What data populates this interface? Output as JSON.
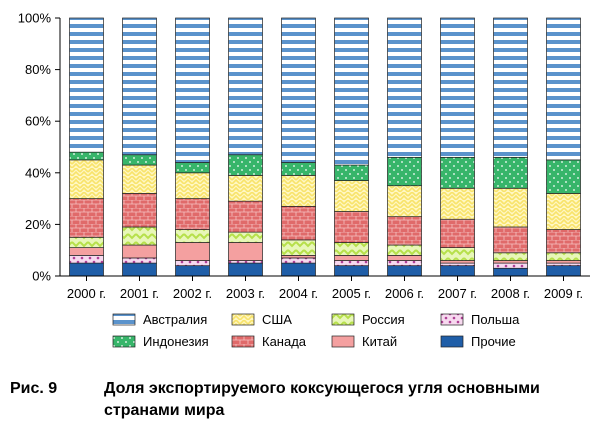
{
  "chart_data": {
    "type": "bar",
    "stacked": true,
    "categories": [
      "2000 г.",
      "2001 г.",
      "2002 г.",
      "2003 г.",
      "2004 г.",
      "2005 г.",
      "2006 г.",
      "2007 г.",
      "2008 г.",
      "2009 г."
    ],
    "ylim": [
      0,
      100
    ],
    "yticks": [
      "0%",
      "20%",
      "40%",
      "60%",
      "80%",
      "100%"
    ],
    "series": [
      {
        "name": "Прочие",
        "color": "#1f5ea8",
        "values": [
          5,
          5,
          4,
          5,
          5,
          4,
          4,
          4,
          3,
          4
        ]
      },
      {
        "name": "Польша",
        "color": "#d98cc8",
        "values": [
          3,
          2,
          2,
          1,
          2,
          2,
          2,
          1,
          2,
          1
        ]
      },
      {
        "name": "Китай",
        "color": "#f4a0a0",
        "values": [
          3,
          5,
          7,
          7,
          1,
          2,
          2,
          1,
          1,
          1
        ]
      },
      {
        "name": "Россия",
        "color": "#b6e04a",
        "values": [
          4,
          7,
          5,
          4,
          6,
          5,
          4,
          5,
          3,
          3
        ]
      },
      {
        "name": "Канада",
        "color": "#e06a6a",
        "values": [
          15,
          13,
          12,
          12,
          13,
          12,
          11,
          11,
          10,
          9
        ]
      },
      {
        "name": "США",
        "color": "#f8e36a",
        "values": [
          15,
          11,
          10,
          10,
          12,
          12,
          12,
          12,
          15,
          14
        ]
      },
      {
        "name": "Индонезия",
        "color": "#37b56a",
        "values": [
          3,
          4,
          4,
          8,
          5,
          6,
          11,
          12,
          12,
          13
        ]
      },
      {
        "name": "Австралия",
        "color": "#5b93cc",
        "values": [
          52,
          53,
          56,
          53,
          56,
          57,
          54,
          54,
          54,
          55
        ]
      }
    ],
    "legend": [
      [
        "Австралия",
        "США",
        "Россия",
        "Польша"
      ],
      [
        "Индонезия",
        "Канада",
        "Китай",
        "Прочие"
      ]
    ]
  },
  "caption": {
    "prefix": "Рис. 9",
    "line1": "Доля экспортируемого коксующегося угля основными",
    "line2": "странами мира"
  }
}
